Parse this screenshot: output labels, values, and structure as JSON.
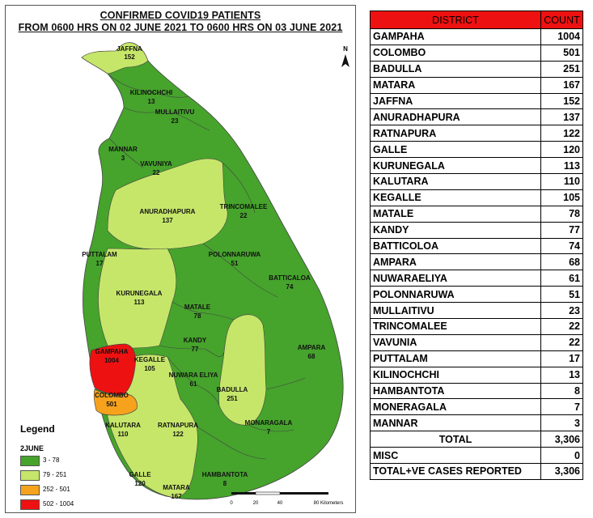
{
  "title": {
    "line1": "CONFIRMED COVID19 PATIENTS",
    "line2": "FROM 0600 HRS ON 02 JUNE 2021 TO 0600 HRS ON 03 JUNE 2021"
  },
  "colors": {
    "dark_green": "#46a32c",
    "light_green": "#c6e66a",
    "orange": "#f7a21c",
    "red": "#ee1111",
    "header_red": "#ee1111"
  },
  "legend": {
    "title": "Legend",
    "subtitle": "2JUNE",
    "items": [
      {
        "range": "3 - 78",
        "color": "#46a32c"
      },
      {
        "range": "79 - 251",
        "color": "#c6e66a"
      },
      {
        "range": "252 - 501",
        "color": "#f7a21c"
      },
      {
        "range": "502 - 1004",
        "color": "#ee1111"
      }
    ]
  },
  "scale_bar": {
    "ticks": [
      "0",
      "20",
      "40",
      "80 Kilometers"
    ]
  },
  "north_arrow": {
    "letter": "N",
    "icon": "north-arrow-icon"
  },
  "map_labels": [
    {
      "name": "JAFFNA",
      "count": "152"
    },
    {
      "name": "KILINOCHCHI",
      "count": "13"
    },
    {
      "name": "MULLAITIVU",
      "count": "23"
    },
    {
      "name": "MANNAR",
      "count": "3"
    },
    {
      "name": "VAVUNIYA",
      "count": "22"
    },
    {
      "name": "ANURADHAPURA",
      "count": "137"
    },
    {
      "name": "TRINCOMALEE",
      "count": "22"
    },
    {
      "name": "PUTTALAM",
      "count": "17"
    },
    {
      "name": "POLONNARUWA",
      "count": "51"
    },
    {
      "name": "BATTICALOA",
      "count": "74"
    },
    {
      "name": "KURUNEGALA",
      "count": "113"
    },
    {
      "name": "MATALE",
      "count": "78"
    },
    {
      "name": "KANDY",
      "count": "77"
    },
    {
      "name": "AMPARA",
      "count": "68"
    },
    {
      "name": "GAMPAHA",
      "count": "1004"
    },
    {
      "name": "KEGALLE",
      "count": "105"
    },
    {
      "name": "NUWARA ELIYA",
      "count": "61"
    },
    {
      "name": "BADULLA",
      "count": "251"
    },
    {
      "name": "COLOMBO",
      "count": "501"
    },
    {
      "name": "KALUTARA",
      "count": "110"
    },
    {
      "name": "RATNAPURA",
      "count": "122"
    },
    {
      "name": "MONARAGALA",
      "count": "7"
    },
    {
      "name": "GALLE",
      "count": "120"
    },
    {
      "name": "HAMBANTOTA",
      "count": "8"
    },
    {
      "name": "MATARA",
      "count": "167"
    }
  ],
  "table": {
    "header_district": "DISTRICT",
    "header_count": "COUNT",
    "rows": [
      {
        "district": "GAMPAHA",
        "count": "1004"
      },
      {
        "district": "COLOMBO",
        "count": "501"
      },
      {
        "district": "BADULLA",
        "count": "251"
      },
      {
        "district": "MATARA",
        "count": "167"
      },
      {
        "district": "JAFFNA",
        "count": "152"
      },
      {
        "district": "ANURADHAPURA",
        "count": "137"
      },
      {
        "district": "RATNAPURA",
        "count": "122"
      },
      {
        "district": "GALLE",
        "count": "120"
      },
      {
        "district": "KURUNEGALA",
        "count": "113"
      },
      {
        "district": "KALUTARA",
        "count": "110"
      },
      {
        "district": "KEGALLE",
        "count": "105"
      },
      {
        "district": "MATALE",
        "count": "78"
      },
      {
        "district": "KANDY",
        "count": "77"
      },
      {
        "district": "BATTICOLOA",
        "count": "74"
      },
      {
        "district": "AMPARA",
        "count": "68"
      },
      {
        "district": "NUWARAELIYA",
        "count": "61"
      },
      {
        "district": "POLONNARUWA",
        "count": "51"
      },
      {
        "district": "MULLAITIVU",
        "count": "23"
      },
      {
        "district": "TRINCOMALEE",
        "count": "22"
      },
      {
        "district": "VAVUNIA",
        "count": "22"
      },
      {
        "district": "PUTTALAM",
        "count": "17"
      },
      {
        "district": "KILINOCHCHI",
        "count": "13"
      },
      {
        "district": "HAMBANTOTA",
        "count": "8"
      },
      {
        "district": "MONERAGALA",
        "count": "7"
      },
      {
        "district": "MANNAR",
        "count": "3"
      }
    ],
    "total_label": "TOTAL",
    "total_value": "3,306",
    "misc_label": "MISC",
    "misc_value": "0",
    "reported_label": "TOTAL+VE CASES REPORTED",
    "reported_value": "3,306"
  }
}
